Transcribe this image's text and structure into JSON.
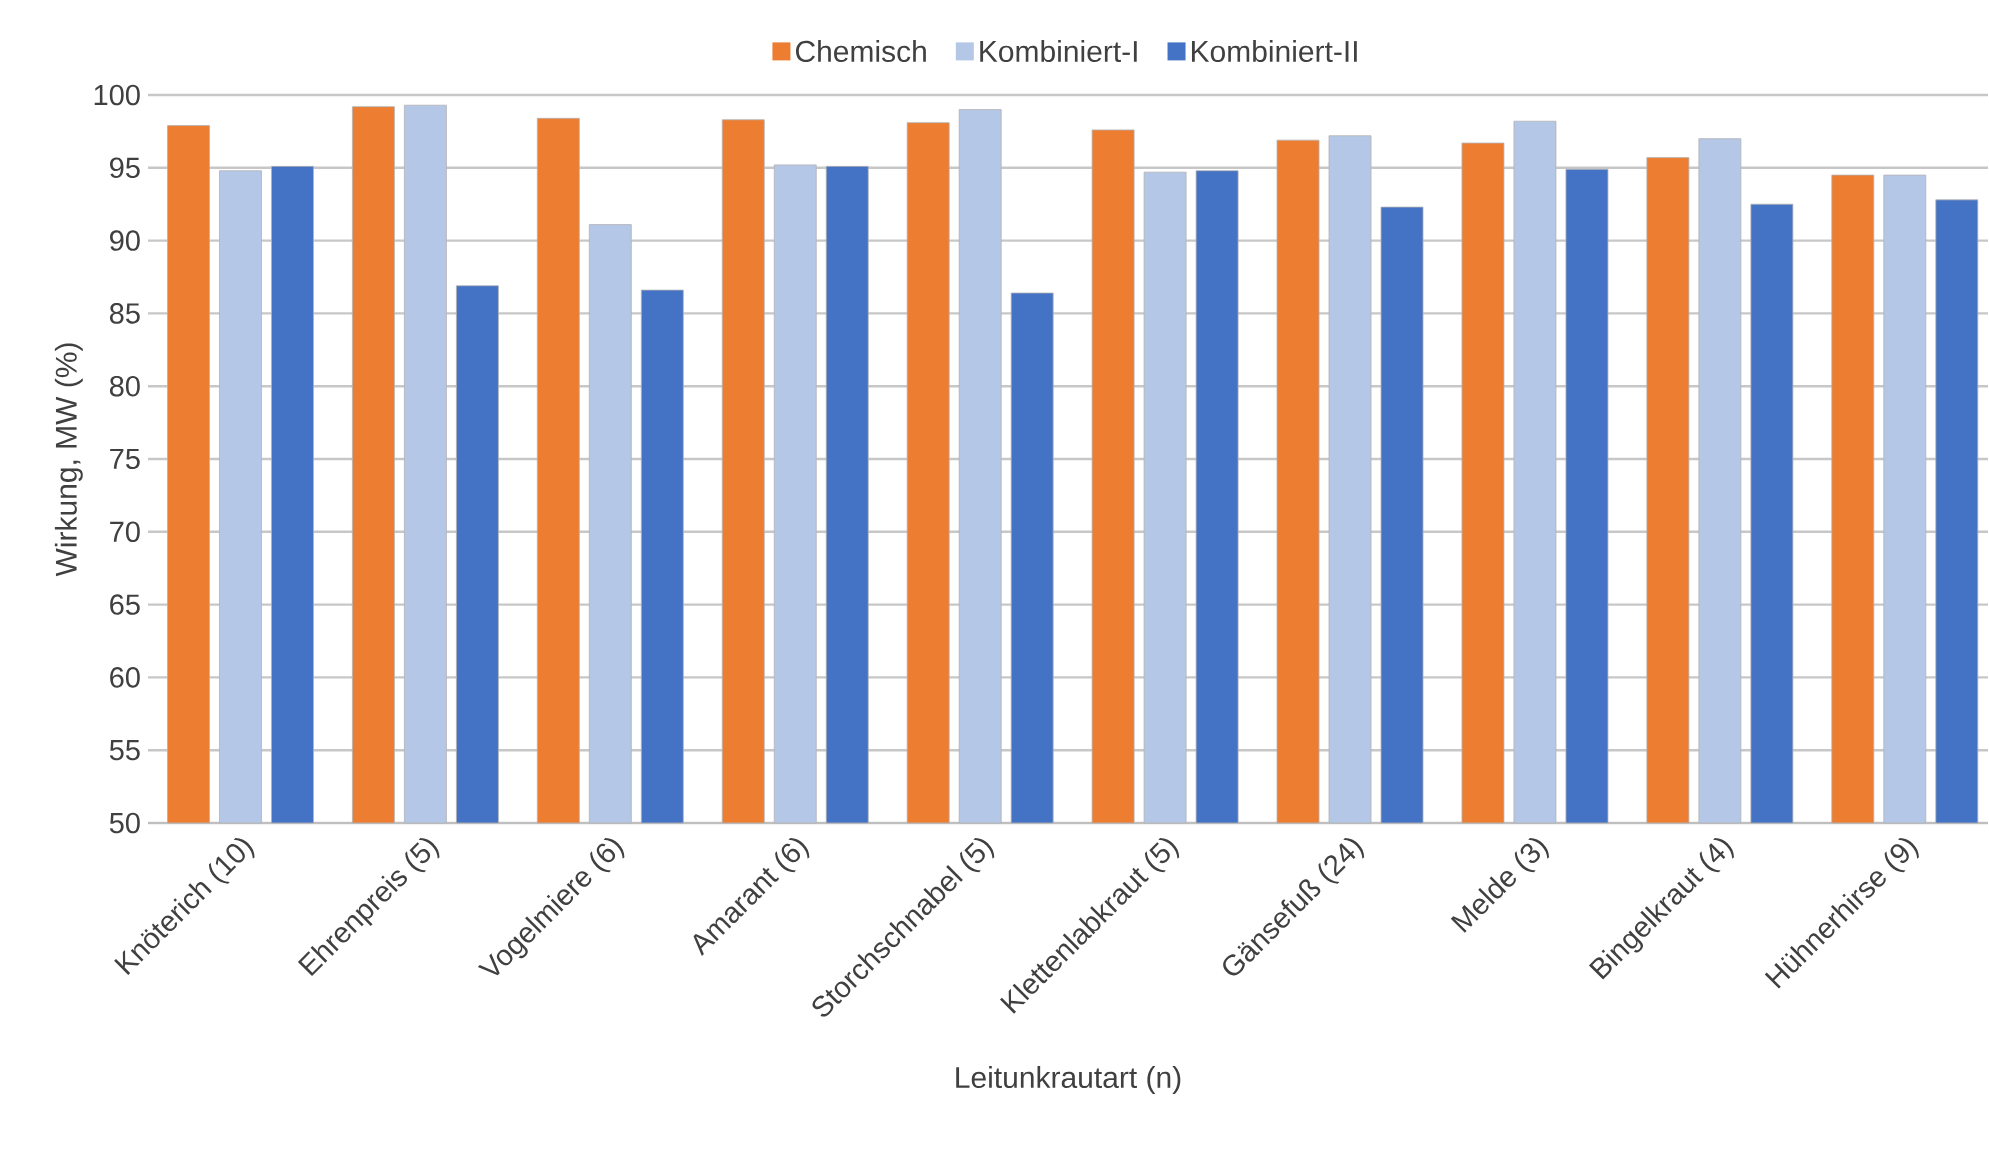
{
  "chart_data": {
    "type": "bar",
    "xlabel": "Leitunkrautart (n)",
    "ylabel": "Wirkung, MW (%)",
    "categories": [
      "Knöterich (10)",
      "Ehrenpreis (5)",
      "Vogelmiere (6)",
      "Amarant (6)",
      "Storchschnabel (5)",
      "Klettenlabkraut (5)",
      "Gänsefuß (24)",
      "Melde (3)",
      "Bingelkraut (4)",
      "Hühnerhirse (9)"
    ],
    "series": [
      {
        "name": "Chemisch",
        "color": "#ed7d31",
        "values": [
          97.9,
          99.2,
          98.4,
          98.3,
          98.1,
          97.6,
          96.9,
          96.7,
          95.7,
          94.5
        ]
      },
      {
        "name": "Kombiniert-I",
        "color": "#b4c7e7",
        "values": [
          94.8,
          99.3,
          91.1,
          95.2,
          99.0,
          94.7,
          97.2,
          98.2,
          97.0,
          94.5
        ]
      },
      {
        "name": "Kombiniert-II",
        "color": "#4472c4",
        "values": [
          95.1,
          86.9,
          86.6,
          95.1,
          86.4,
          94.8,
          92.3,
          94.9,
          92.5,
          92.8
        ]
      }
    ],
    "ylim": [
      50,
      100
    ],
    "yticks": [
      50,
      55,
      60,
      65,
      70,
      75,
      80,
      85,
      90,
      95,
      100
    ],
    "grid": "y",
    "legend": "top"
  }
}
